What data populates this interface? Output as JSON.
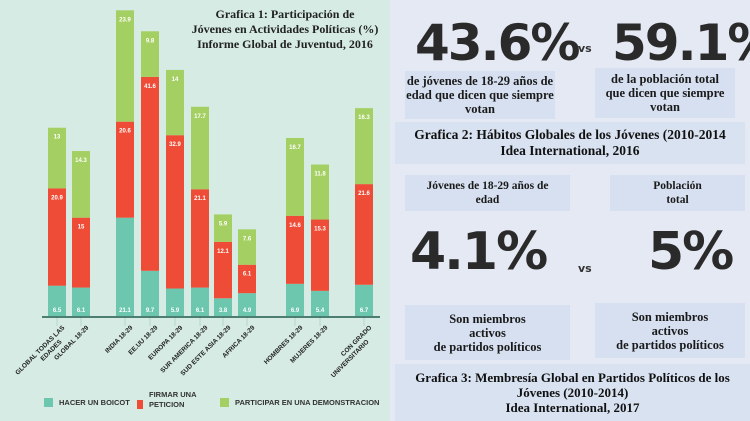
{
  "chart_data": {
    "type": "bar",
    "stacked": true,
    "title": "Grafica 1: Participación de Jóvenes en Actividades Políticas (%) Informe Global de Juventud, 2016",
    "title_lines": [
      "Grafica 1: Participación de",
      "Jóvenes en Actividades Políticas (%)",
      "Informe Global de Juventud, 2016"
    ],
    "categories": [
      "GLOBAL TODAS LAS EDADES",
      "GLOBAL 18-29",
      "INDIA 18-29",
      "EE.UU 18-29",
      "EUROPA 18-29",
      "SUR AMERICA 18-29",
      "SUD ESTE ASIA 18-29",
      "AFRICA 18-29",
      "HOMBRES 18-29",
      "MUJERES 18-29",
      "CON GRADO UNIVERSITARIO"
    ],
    "series": [
      {
        "name": "HACER UN BOICOT",
        "color": "#6cc7ae",
        "values": [
          6.5,
          6.1,
          21.1,
          9.7,
          5.9,
          6.1,
          3.8,
          4.9,
          6.9,
          5.4,
          6.7
        ]
      },
      {
        "name": "FIRMAR UNA PETICION",
        "color": "#ee4c36",
        "values": [
          20.9,
          15,
          20.6,
          41.6,
          32.9,
          21.1,
          12.1,
          6.1,
          14.6,
          15.3,
          21.6
        ]
      },
      {
        "name": "PARTICIPAR EN UNA DEMONSTRACION",
        "color": "#a4cf62",
        "values": [
          13,
          14.3,
          23.9,
          9.8,
          14,
          17.7,
          5.9,
          7.6,
          16.7,
          11.8,
          16.3
        ]
      }
    ],
    "legend": "bottom",
    "grid": false
  },
  "legend_labels": {
    "boicot": "HACER UN BOICOT",
    "peticion_1": "FIRMAR UNA",
    "peticion_2": "PETICION",
    "demo": "PARTICIPAR EN UNA DEMONSTRACION"
  },
  "graph2": {
    "youth_value": "43.6%",
    "vs": "vs",
    "total_value": "59.1%",
    "youth_desc": [
      "de jóvenes de 18-29 años de",
      "edad que dicen que siempre",
      "votan"
    ],
    "total_desc": [
      "de la población total",
      "que dicen que siempre",
      "votan"
    ],
    "title": [
      "Grafica 2: Hábitos Globales de los Jóvenes (2010-2014",
      "Idea International, 2016"
    ]
  },
  "graph3": {
    "youth_head": [
      "Jóvenes de 18-29 años de",
      "edad"
    ],
    "total_head": [
      "Población",
      "total"
    ],
    "youth_value": "4.1%",
    "vs": "vs",
    "total_value": "5%",
    "youth_desc": [
      "Son miembros",
      "activos",
      "de partidos políticos"
    ],
    "total_desc": [
      "Son miembros",
      "activos",
      "de partidos políticos"
    ],
    "title": [
      "Grafica 3: Membresía Global en Partidos Políticos de los",
      "Jóvenes (2010-2014)",
      "Idea International, 2017"
    ]
  }
}
